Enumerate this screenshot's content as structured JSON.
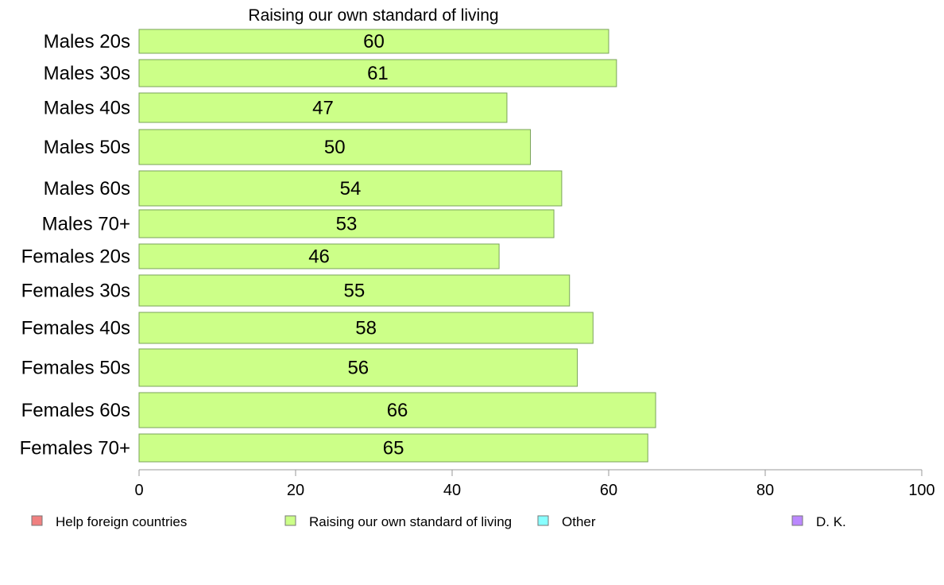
{
  "chart_data": {
    "type": "bar",
    "orientation": "horizontal",
    "title": "Raising our own standard of living",
    "categories": [
      "Males 20s",
      "Males 30s",
      "Males 40s",
      "Males 50s",
      "Males 60s",
      "Males 70+",
      "Females 20s",
      "Females 30s",
      "Females 40s",
      "Females 50s",
      "Females 60s",
      "Females 70+"
    ],
    "series": [
      {
        "name": "Raising our own standard of living",
        "values": [
          60,
          61,
          47,
          50,
          54,
          53,
          46,
          55,
          58,
          56,
          66,
          65
        ]
      }
    ],
    "xlim": [
      0,
      100
    ],
    "xticks": [
      0,
      20,
      40,
      60,
      80,
      100
    ],
    "grid": false,
    "legend_position": "bottom",
    "legend": [
      {
        "label": "Help foreign countries",
        "color": "#f08080"
      },
      {
        "label": "Raising our own standard of living",
        "color": "#ccff88"
      },
      {
        "label": "Other",
        "color": "#88ffff"
      },
      {
        "label": "D. K.",
        "color": "#bb88ff"
      }
    ],
    "bar_color": "#ccff88"
  }
}
